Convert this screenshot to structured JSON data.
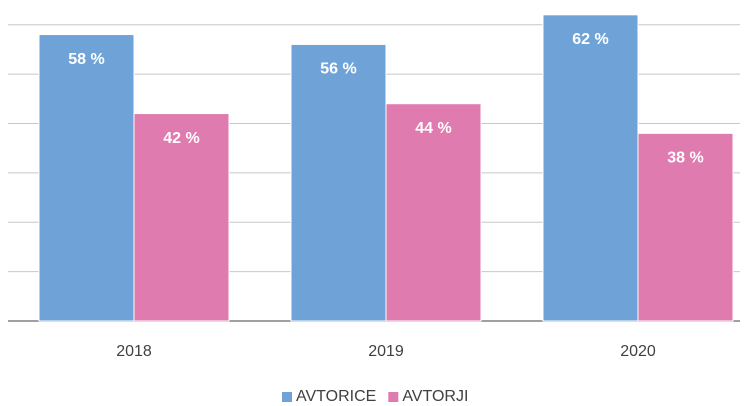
{
  "chart_data": {
    "type": "bar",
    "categories": [
      "2018",
      "2019",
      "2020"
    ],
    "series": [
      {
        "name": "AVTORICE",
        "color": "#6fa3d8",
        "values": [
          58,
          56,
          62
        ],
        "value_labels": [
          "58 %",
          "56 %",
          "62 %"
        ]
      },
      {
        "name": "AVTORJI",
        "color": "#e07bb0",
        "values": [
          42,
          44,
          38
        ],
        "value_labels": [
          "42 %",
          "44 %",
          "38 %"
        ]
      }
    ],
    "ylim": [
      0,
      65
    ],
    "yticks": [
      0,
      10,
      20,
      30,
      40,
      50,
      60
    ],
    "grid": true,
    "legend": "bottom"
  }
}
